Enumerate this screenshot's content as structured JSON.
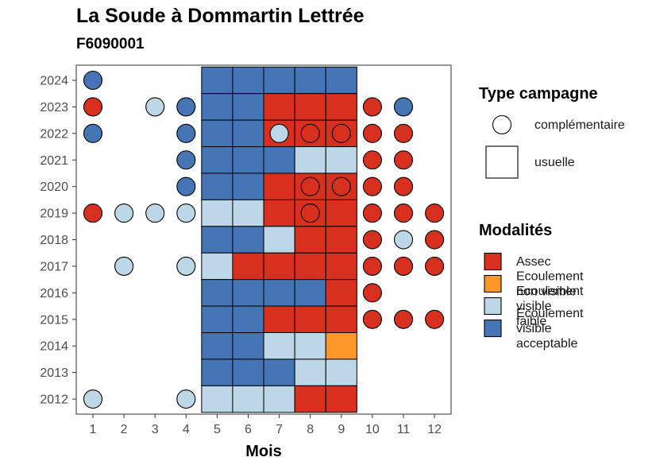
{
  "chart_data": {
    "type": "heatmap",
    "title": "La Soude à Dommartin Lettrée",
    "subtitle": "F6090001",
    "xlabel": "Mois",
    "ylabel": "",
    "x_ticks": [
      "1",
      "2",
      "3",
      "4",
      "5",
      "6",
      "7",
      "8",
      "9",
      "10",
      "11",
      "12"
    ],
    "y_ticks": [
      "2012",
      "2013",
      "2014",
      "2015",
      "2016",
      "2017",
      "2018",
      "2019",
      "2020",
      "2021",
      "2022",
      "2023",
      "2024"
    ],
    "colors": {
      "Assec": "#d7301f",
      "Ecoulement non visible": "#fe9929",
      "Ecoulement visible faible": "#bdd7e7",
      "Ecoulement visible acceptable": "#4575b4"
    },
    "legend_type": {
      "title": "Type campagne",
      "entries": [
        {
          "label": "complémentaire",
          "shape": "circle"
        },
        {
          "label": "usuelle",
          "shape": "square"
        }
      ]
    },
    "legend_modalites": {
      "title": "Modalités",
      "entries": [
        {
          "key": "Assec",
          "lines": [
            "Assec"
          ]
        },
        {
          "key": "Ecoulement non visible",
          "lines": [
            "Ecoulement",
            "non visible"
          ]
        },
        {
          "key": "Ecoulement visible faible",
          "lines": [
            "Ecoulement",
            "visible",
            "faible"
          ]
        },
        {
          "key": "Ecoulement visible acceptable",
          "lines": [
            "Ecoulement",
            "visible",
            "acceptable"
          ]
        }
      ]
    },
    "usuelle": [
      {
        "year": 2024,
        "values": {
          "5": "Ecoulement visible acceptable",
          "6": "Ecoulement visible acceptable",
          "7": "Ecoulement visible acceptable",
          "8": "Ecoulement visible acceptable",
          "9": "Ecoulement visible acceptable"
        }
      },
      {
        "year": 2023,
        "values": {
          "5": "Ecoulement visible acceptable",
          "6": "Ecoulement visible acceptable",
          "7": "Assec",
          "8": "Assec",
          "9": "Assec"
        }
      },
      {
        "year": 2022,
        "values": {
          "5": "Ecoulement visible acceptable",
          "6": "Ecoulement visible acceptable",
          "7": "Assec",
          "8": "Assec",
          "9": "Assec"
        }
      },
      {
        "year": 2021,
        "values": {
          "5": "Ecoulement visible acceptable",
          "6": "Ecoulement visible acceptable",
          "7": "Ecoulement visible acceptable",
          "8": "Ecoulement visible faible",
          "9": "Ecoulement visible faible"
        }
      },
      {
        "year": 2020,
        "values": {
          "5": "Ecoulement visible acceptable",
          "6": "Ecoulement visible acceptable",
          "7": "Assec",
          "8": "Assec",
          "9": "Assec"
        }
      },
      {
        "year": 2019,
        "values": {
          "5": "Ecoulement visible faible",
          "6": "Ecoulement visible faible",
          "7": "Assec",
          "8": "Assec",
          "9": "Assec"
        }
      },
      {
        "year": 2018,
        "values": {
          "5": "Ecoulement visible acceptable",
          "6": "Ecoulement visible acceptable",
          "7": "Ecoulement visible faible",
          "8": "Assec",
          "9": "Assec"
        }
      },
      {
        "year": 2017,
        "values": {
          "5": "Ecoulement visible faible",
          "6": "Assec",
          "7": "Assec",
          "8": "Assec",
          "9": "Assec"
        }
      },
      {
        "year": 2016,
        "values": {
          "5": "Ecoulement visible acceptable",
          "6": "Ecoulement visible acceptable",
          "7": "Ecoulement visible acceptable",
          "8": "Ecoulement visible acceptable",
          "9": "Assec"
        }
      },
      {
        "year": 2015,
        "values": {
          "5": "Ecoulement visible acceptable",
          "6": "Ecoulement visible acceptable",
          "7": "Assec",
          "8": "Assec",
          "9": "Assec"
        }
      },
      {
        "year": 2014,
        "values": {
          "5": "Ecoulement visible acceptable",
          "6": "Ecoulement visible acceptable",
          "7": "Ecoulement visible faible",
          "8": "Ecoulement visible faible",
          "9": "Ecoulement non visible"
        }
      },
      {
        "year": 2013,
        "values": {
          "5": "Ecoulement visible acceptable",
          "6": "Ecoulement visible acceptable",
          "7": "Ecoulement visible acceptable",
          "8": "Ecoulement visible faible",
          "9": "Ecoulement visible faible"
        }
      },
      {
        "year": 2012,
        "values": {
          "5": "Ecoulement visible faible",
          "6": "Ecoulement visible faible",
          "7": "Ecoulement visible faible",
          "8": "Assec",
          "9": "Assec"
        }
      }
    ],
    "complementaire": [
      {
        "year": 2024,
        "month": 1,
        "value": "Ecoulement visible acceptable"
      },
      {
        "year": 2023,
        "month": 1,
        "value": "Assec"
      },
      {
        "year": 2023,
        "month": 3,
        "value": "Ecoulement visible faible"
      },
      {
        "year": 2023,
        "month": 4,
        "value": "Ecoulement visible acceptable"
      },
      {
        "year": 2023,
        "month": 10,
        "value": "Assec"
      },
      {
        "year": 2023,
        "month": 11,
        "value": "Ecoulement visible acceptable"
      },
      {
        "year": 2022,
        "month": 1,
        "value": "Ecoulement visible acceptable"
      },
      {
        "year": 2022,
        "month": 4,
        "value": "Ecoulement visible acceptable"
      },
      {
        "year": 2022,
        "month": 7,
        "value": "Ecoulement visible faible"
      },
      {
        "year": 2022,
        "month": 8,
        "value": "Assec"
      },
      {
        "year": 2022,
        "month": 9,
        "value": "Assec"
      },
      {
        "year": 2022,
        "month": 10,
        "value": "Assec"
      },
      {
        "year": 2022,
        "month": 11,
        "value": "Assec"
      },
      {
        "year": 2021,
        "month": 4,
        "value": "Ecoulement visible acceptable"
      },
      {
        "year": 2021,
        "month": 10,
        "value": "Assec"
      },
      {
        "year": 2021,
        "month": 11,
        "value": "Assec"
      },
      {
        "year": 2020,
        "month": 4,
        "value": "Ecoulement visible acceptable"
      },
      {
        "year": 2020,
        "month": 8,
        "value": "Assec"
      },
      {
        "year": 2020,
        "month": 9,
        "value": "Assec"
      },
      {
        "year": 2020,
        "month": 10,
        "value": "Assec"
      },
      {
        "year": 2020,
        "month": 11,
        "value": "Assec"
      },
      {
        "year": 2019,
        "month": 1,
        "value": "Assec"
      },
      {
        "year": 2019,
        "month": 2,
        "value": "Ecoulement visible faible"
      },
      {
        "year": 2019,
        "month": 3,
        "value": "Ecoulement visible faible"
      },
      {
        "year": 2019,
        "month": 4,
        "value": "Ecoulement visible faible"
      },
      {
        "year": 2019,
        "month": 8,
        "value": "Assec"
      },
      {
        "year": 2019,
        "month": 10,
        "value": "Assec"
      },
      {
        "year": 2019,
        "month": 11,
        "value": "Assec"
      },
      {
        "year": 2019,
        "month": 12,
        "value": "Assec"
      },
      {
        "year": 2018,
        "month": 10,
        "value": "Assec"
      },
      {
        "year": 2018,
        "month": 11,
        "value": "Ecoulement visible faible"
      },
      {
        "year": 2018,
        "month": 12,
        "value": "Assec"
      },
      {
        "year": 2017,
        "month": 2,
        "value": "Ecoulement visible faible"
      },
      {
        "year": 2017,
        "month": 4,
        "value": "Ecoulement visible faible"
      },
      {
        "year": 2017,
        "month": 10,
        "value": "Assec"
      },
      {
        "year": 2017,
        "month": 11,
        "value": "Assec"
      },
      {
        "year": 2017,
        "month": 12,
        "value": "Assec"
      },
      {
        "year": 2016,
        "month": 10,
        "value": "Assec"
      },
      {
        "year": 2015,
        "month": 10,
        "value": "Assec"
      },
      {
        "year": 2015,
        "month": 11,
        "value": "Assec"
      },
      {
        "year": 2015,
        "month": 12,
        "value": "Assec"
      },
      {
        "year": 2012,
        "month": 1,
        "value": "Ecoulement visible faible"
      },
      {
        "year": 2012,
        "month": 4,
        "value": "Ecoulement visible faible"
      }
    ]
  }
}
